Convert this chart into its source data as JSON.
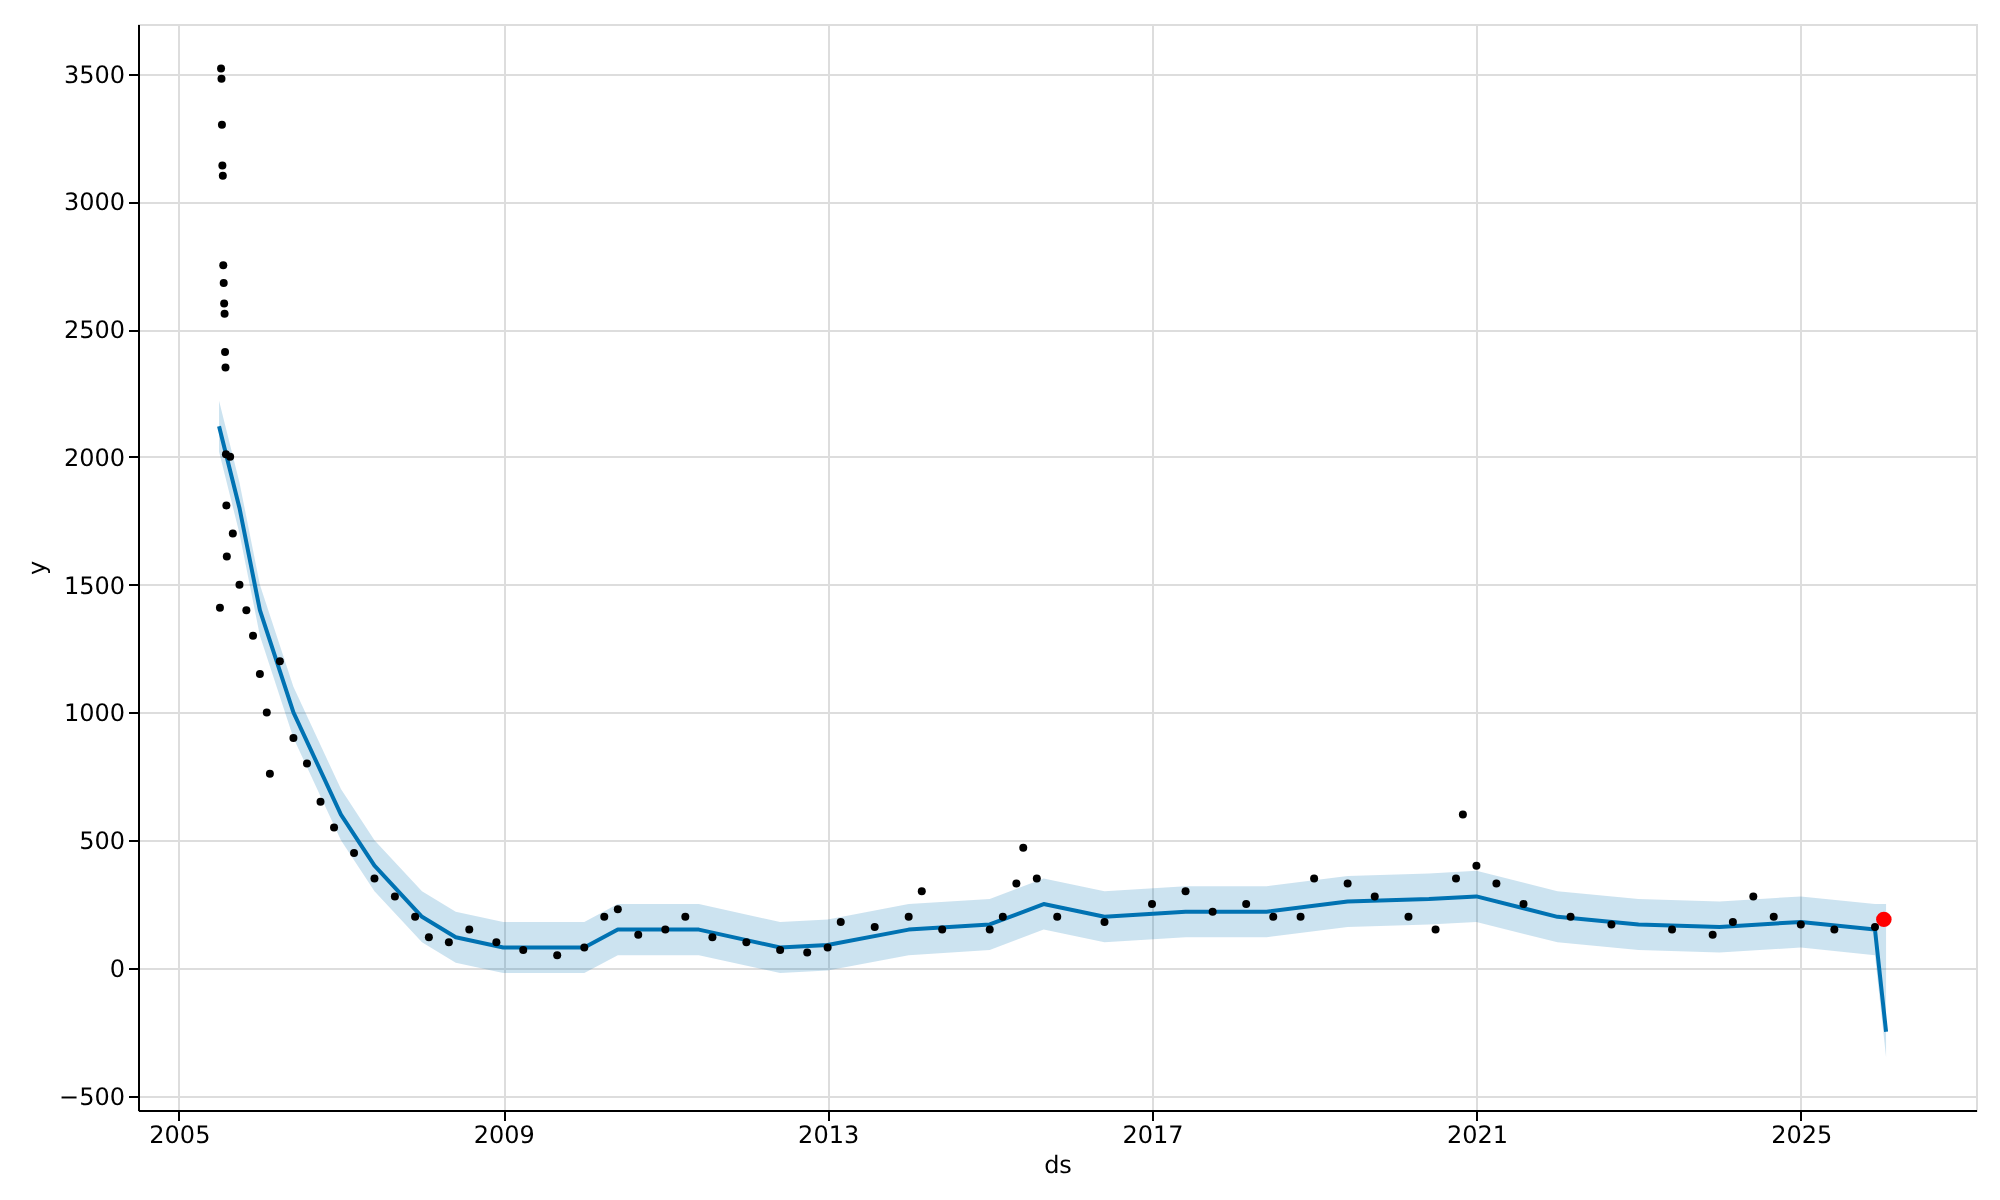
{
  "chart_data": {
    "type": "scatter",
    "xlabel": "ds",
    "ylabel": "y",
    "xlim": [
      "2004-07",
      "2027-03"
    ],
    "xticks": [
      {
        "value": "2005",
        "label": "2005"
      },
      {
        "value": "2009",
        "label": "2009"
      },
      {
        "value": "2013",
        "label": "2013"
      },
      {
        "value": "2017",
        "label": "2017"
      },
      {
        "value": "2021",
        "label": "2021"
      },
      {
        "value": "2025",
        "label": "2025"
      }
    ],
    "ylim": [
      -556,
      3694
    ],
    "yticks": [
      -500,
      0,
      500,
      1000,
      1500,
      2000,
      2500,
      3000,
      3500
    ],
    "grid": true,
    "series": [
      {
        "marker": "circle",
        "color": "#000000",
        "x": [
          "2005-07-10",
          "2005-07-12",
          "2005-07-14",
          "2005-07-16",
          "2005-07-18",
          "2005-07-20",
          "2005-07-22",
          "2005-07-24",
          "2005-07-26",
          "2005-07-28",
          "2005-07-30",
          "2005-08-01",
          "2005-08-03",
          "2005-08-05",
          "2005-07-05",
          "2005-08-20",
          "2005-09",
          "2005-10",
          "2005-11",
          "2005-12",
          "2006-01",
          "2006-02",
          "2006-02-15",
          "2006-04",
          "2006-06",
          "2006-08",
          "2006-10",
          "2006-12",
          "2007-03",
          "2007-06",
          "2007-09",
          "2007-12",
          "2008-02",
          "2008-05",
          "2008-08",
          "2008-12",
          "2009-04",
          "2009-09",
          "2010-01",
          "2010-04",
          "2010-06",
          "2010-09",
          "2011-01",
          "2011-04",
          "2011-08",
          "2012-01",
          "2012-06",
          "2012-10",
          "2013-01",
          "2013-03",
          "2013-08",
          "2014-01",
          "2014-03",
          "2014-06",
          "2015-01",
          "2015-03",
          "2015-05",
          "2015-06",
          "2015-08",
          "2015-11",
          "2016-06",
          "2017-01",
          "2017-06",
          "2017-10",
          "2018-03",
          "2018-07",
          "2018-11",
          "2019-01",
          "2019-06",
          "2019-10",
          "2020-03",
          "2020-07",
          "2020-10",
          "2020-11",
          "2021-01",
          "2021-04",
          "2021-08",
          "2022-03",
          "2022-09",
          "2023-06",
          "2023-12",
          "2024-03",
          "2024-06",
          "2024-09",
          "2025-01",
          "2025-06",
          "2025-12"
        ],
        "values": [
          3520,
          3480,
          3300,
          3140,
          3100,
          2750,
          2680,
          2600,
          2560,
          2410,
          2350,
          2010,
          1810,
          1610,
          1410,
          2000,
          1700,
          1500,
          1400,
          1300,
          1150,
          1000,
          760,
          1200,
          900,
          800,
          650,
          550,
          450,
          350,
          280,
          200,
          120,
          100,
          150,
          100,
          70,
          50,
          80,
          200,
          230,
          130,
          150,
          200,
          120,
          100,
          70,
          60,
          80,
          180,
          160,
          200,
          300,
          150,
          150,
          200,
          330,
          470,
          350,
          200,
          180,
          250,
          300,
          220,
          250,
          200,
          200,
          350,
          330,
          280,
          200,
          150,
          350,
          600,
          400,
          330,
          250,
          200,
          170,
          150,
          130,
          180,
          280,
          200,
          170,
          150,
          160
        ]
      },
      {
        "type": "line",
        "marker": "none",
        "line_style": "solid",
        "color": "#0072b2",
        "x": [
          "2005-07",
          "2005-10",
          "2006-01",
          "2006-06",
          "2007-01",
          "2007-06",
          "2008-01",
          "2008-06",
          "2009-01",
          "2010-01",
          "2010-06",
          "2011-06",
          "2012-06",
          "2013-01",
          "2014-01",
          "2015-01",
          "2015-09",
          "2016-06",
          "2017-06",
          "2018-06",
          "2019-06",
          "2020-06",
          "2021-01",
          "2022-01",
          "2023-01",
          "2024-01",
          "2025-01",
          "2025-12",
          "2026-01-20"
        ],
        "values": [
          2120,
          1800,
          1400,
          1000,
          600,
          400,
          200,
          120,
          80,
          80,
          150,
          150,
          80,
          90,
          150,
          170,
          250,
          200,
          220,
          220,
          260,
          270,
          280,
          200,
          170,
          160,
          180,
          150,
          -250
        ],
        "lower": [
          2020,
          1700,
          1300,
          900,
          500,
          300,
          100,
          20,
          -20,
          -20,
          50,
          50,
          -20,
          -10,
          50,
          70,
          150,
          100,
          120,
          120,
          160,
          170,
          180,
          100,
          70,
          60,
          80,
          50,
          -350
        ],
        "upper": [
          2220,
          1900,
          1500,
          1100,
          700,
          500,
          300,
          220,
          180,
          180,
          250,
          250,
          180,
          190,
          250,
          270,
          350,
          300,
          320,
          320,
          360,
          370,
          380,
          300,
          270,
          260,
          280,
          250,
          250
        ]
      },
      {
        "type": "scatter",
        "marker": "circle",
        "color": "#ff0000",
        "x": [
          "2026-01-10"
        ],
        "values": [
          190
        ]
      }
    ]
  }
}
